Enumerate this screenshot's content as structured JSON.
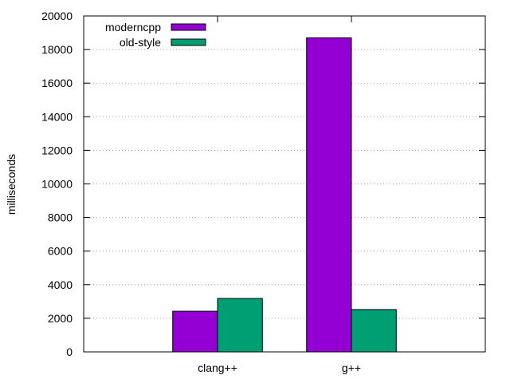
{
  "chart_data": {
    "type": "bar",
    "categories": [
      "clang++",
      "g++"
    ],
    "series": [
      {
        "name": "moderncpp",
        "color": "#9400d3",
        "values": [
          2420,
          18700
        ]
      },
      {
        "name": "old-style",
        "color": "#009e73",
        "values": [
          3180,
          2520
        ]
      }
    ],
    "ylabel": "milliseconds",
    "ylim": [
      0,
      20000
    ],
    "yticks": [
      0,
      2000,
      4000,
      6000,
      8000,
      10000,
      12000,
      14000,
      16000,
      18000,
      20000
    ],
    "xlim": [
      -1,
      2
    ],
    "grid": {
      "y": true,
      "style": "dotted"
    },
    "legend": "top-left"
  }
}
